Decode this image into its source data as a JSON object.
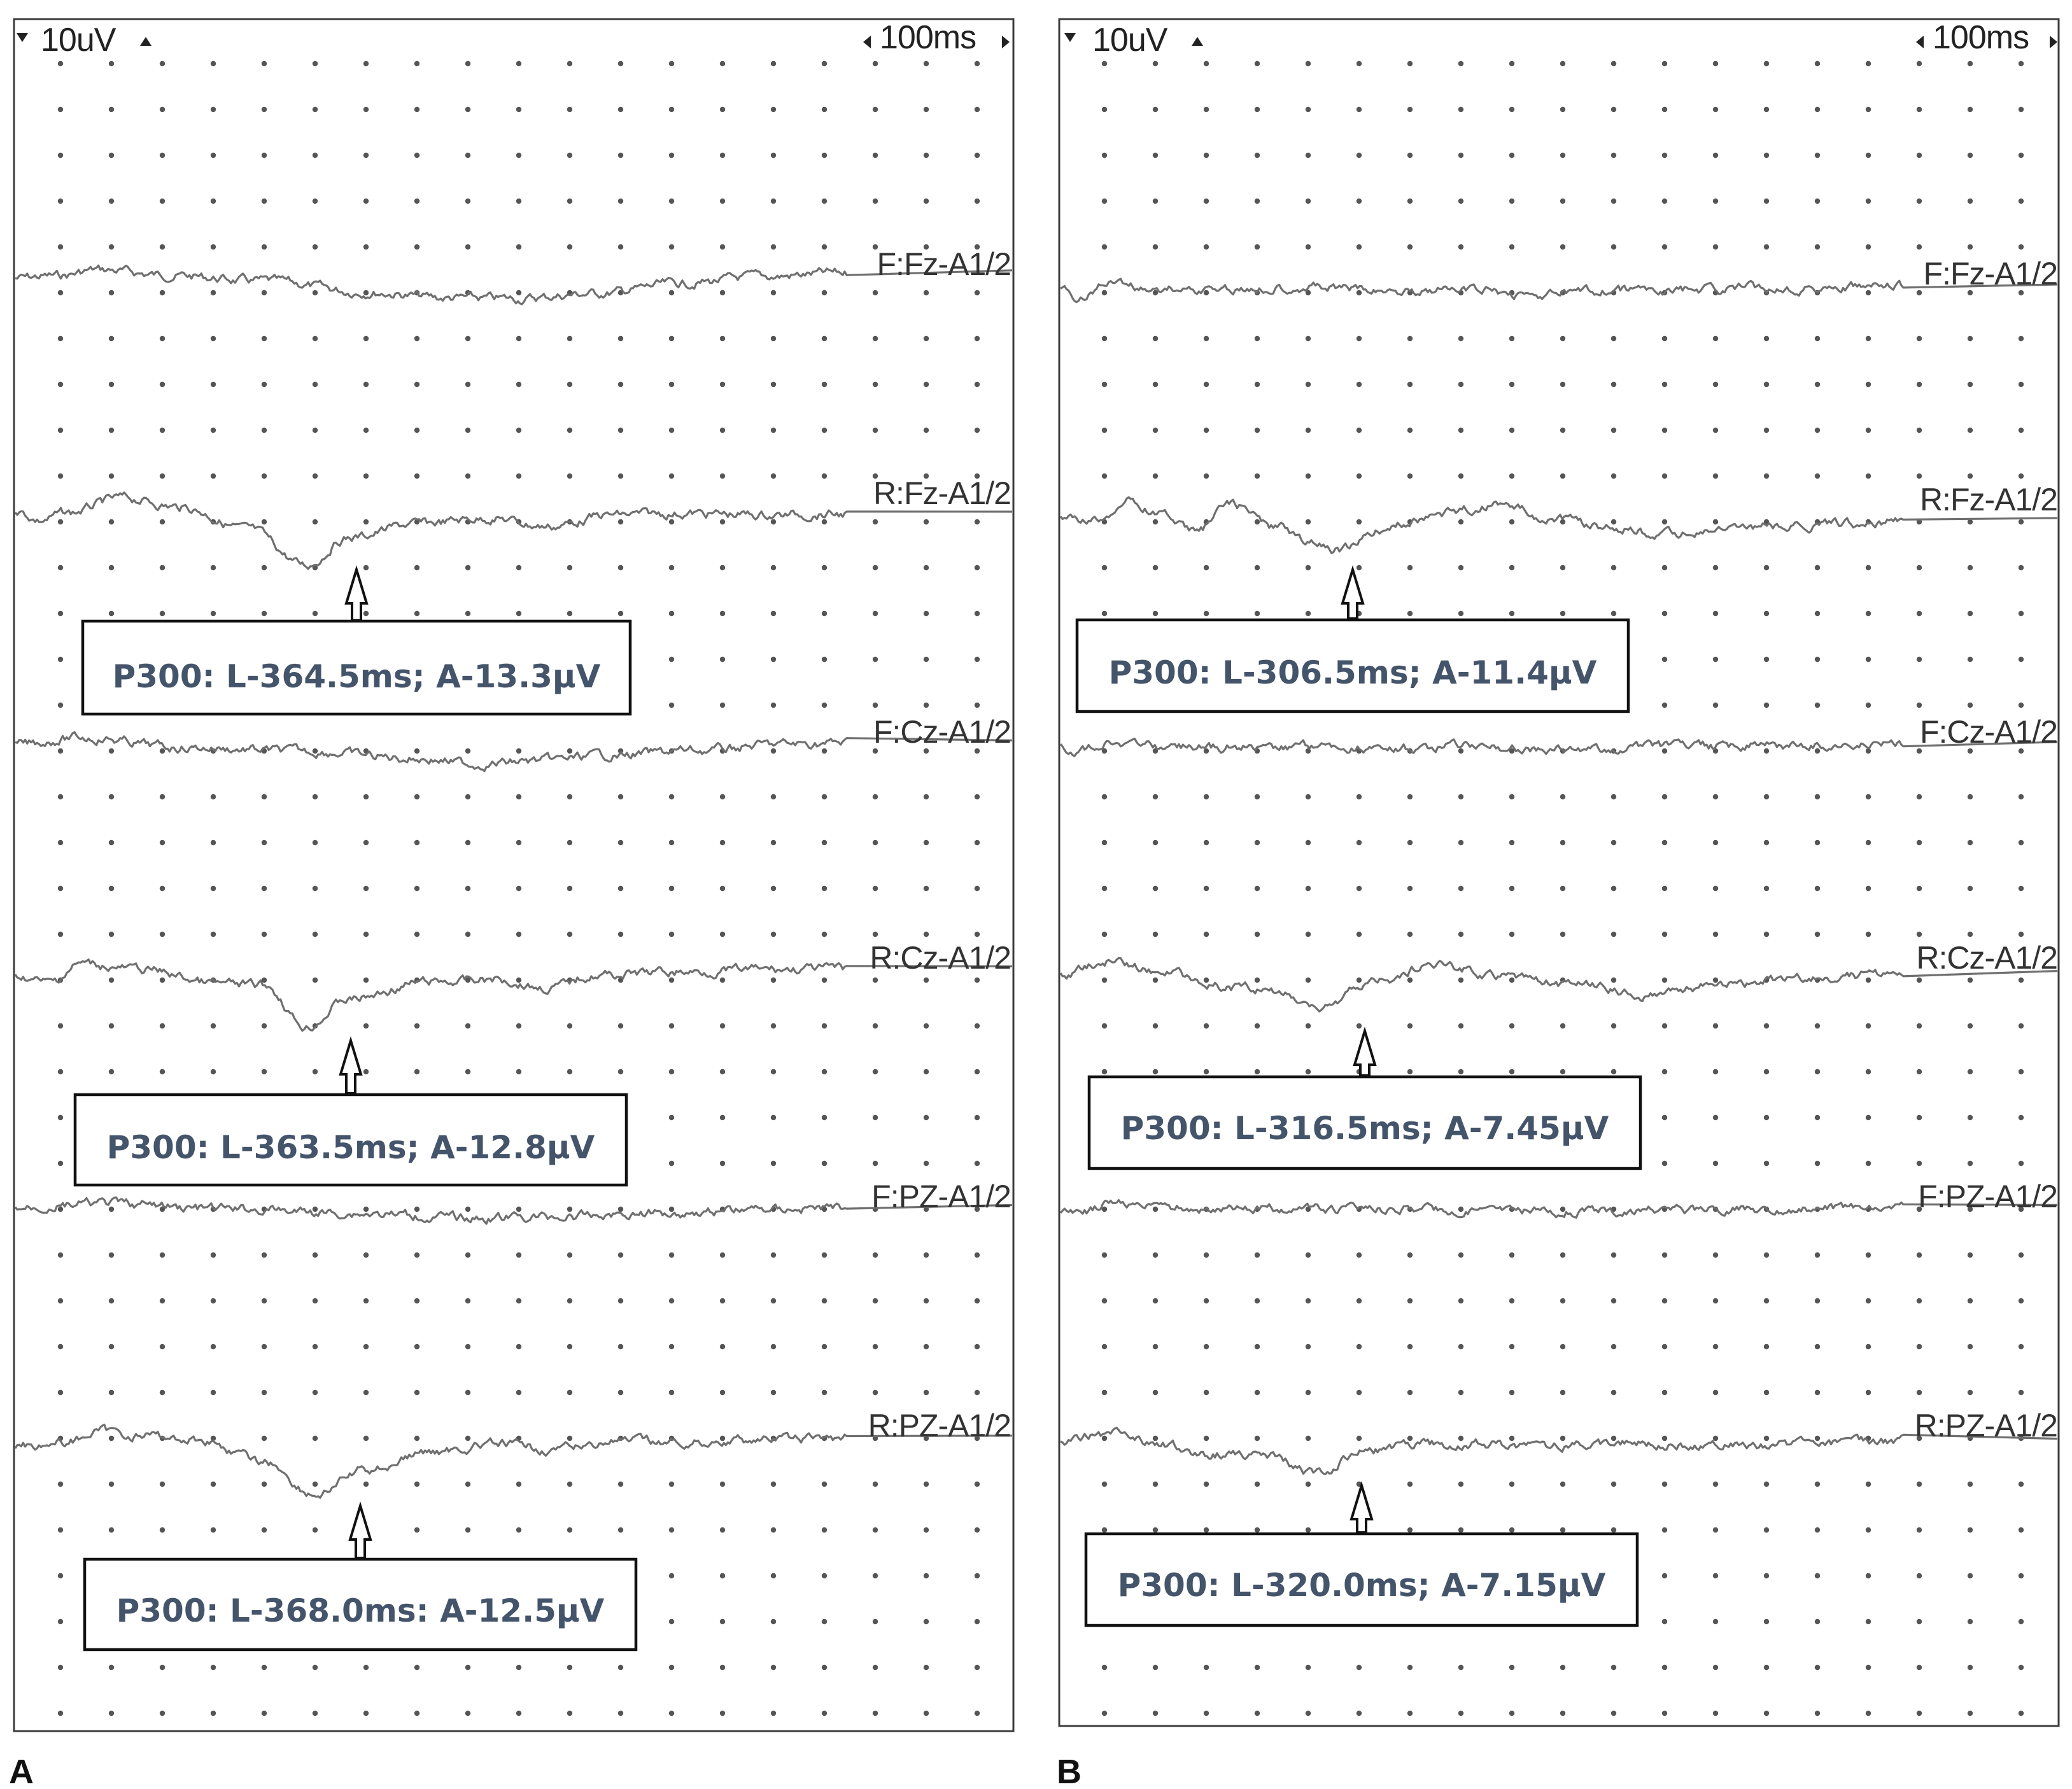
{
  "chart_data": [
    {
      "type": "line",
      "panel_label": "A",
      "scale": {
        "amplitude": "10uV",
        "time": "100ms"
      },
      "series": [
        {
          "name": "F:Fz-A1/2",
          "shape": [
            [
              0,
              0.6
            ],
            [
              0.05,
              0.3
            ],
            [
              0.1,
              -0.5
            ],
            [
              0.18,
              0.2
            ],
            [
              0.3,
              1.0
            ],
            [
              0.42,
              2.4
            ],
            [
              0.52,
              3.2
            ],
            [
              0.6,
              3.3
            ],
            [
              0.7,
              2.6
            ],
            [
              0.8,
              1.3
            ],
            [
              0.9,
              0.4
            ],
            [
              1,
              -0.1
            ]
          ]
        },
        {
          "name": "R:Fz-A1/2",
          "shape": [
            [
              0,
              1.0
            ],
            [
              0.03,
              2.3
            ],
            [
              0.06,
              1.4
            ],
            [
              0.13,
              -0.6
            ],
            [
              0.2,
              0.6
            ],
            [
              0.28,
              3.5
            ],
            [
              0.35,
              8.2
            ],
            [
              0.4,
              4.6
            ],
            [
              0.48,
              2.8
            ],
            [
              0.57,
              2.0
            ],
            [
              0.64,
              3.1
            ],
            [
              0.72,
              1.6
            ],
            [
              0.8,
              1.4
            ],
            [
              0.9,
              1.6
            ],
            [
              1,
              1.5
            ]
          ]
        },
        {
          "name": "F:Cz-A1/2",
          "shape": [
            [
              0,
              0.4
            ],
            [
              0.08,
              -0.5
            ],
            [
              0.2,
              0.8
            ],
            [
              0.35,
              1.3
            ],
            [
              0.48,
              2.2
            ],
            [
              0.56,
              3.0
            ],
            [
              0.62,
              2.6
            ],
            [
              0.72,
              1.8
            ],
            [
              0.82,
              1.2
            ],
            [
              0.92,
              0.4
            ],
            [
              1,
              0.2
            ]
          ]
        },
        {
          "name": "R:Cz-A1/2",
          "shape": [
            [
              0,
              1.0
            ],
            [
              0.04,
              2.0
            ],
            [
              0.08,
              -0.5
            ],
            [
              0.15,
              0.3
            ],
            [
              0.25,
              2.2
            ],
            [
              0.3,
              2.4
            ],
            [
              0.35,
              7.8
            ],
            [
              0.4,
              4.2
            ],
            [
              0.5,
              1.9
            ],
            [
              0.58,
              1.6
            ],
            [
              0.64,
              2.7
            ],
            [
              0.7,
              1.0
            ],
            [
              0.8,
              0.6
            ],
            [
              0.9,
              0.3
            ],
            [
              1,
              0.2
            ]
          ]
        },
        {
          "name": "F:PZ-A1/2",
          "shape": [
            [
              0,
              0.3
            ],
            [
              0.1,
              -0.3
            ],
            [
              0.25,
              0.4
            ],
            [
              0.4,
              0.9
            ],
            [
              0.55,
              1.6
            ],
            [
              0.65,
              1.4
            ],
            [
              0.78,
              0.9
            ],
            [
              0.9,
              0.4
            ],
            [
              1,
              0.2
            ]
          ]
        },
        {
          "name": "R:PZ-A1/2",
          "shape": [
            [
              0,
              1.3
            ],
            [
              0.06,
              1.0
            ],
            [
              0.1,
              -0.5
            ],
            [
              0.15,
              0.0
            ],
            [
              0.22,
              0.6
            ],
            [
              0.3,
              3.5
            ],
            [
              0.36,
              7.8
            ],
            [
              0.42,
              4.6
            ],
            [
              0.5,
              2.2
            ],
            [
              0.58,
              1.2
            ],
            [
              0.65,
              1.9
            ],
            [
              0.72,
              0.8
            ],
            [
              0.8,
              1.0
            ],
            [
              0.9,
              0.6
            ],
            [
              1,
              0.4
            ]
          ]
        }
      ],
      "annotations": [
        {
          "channel": "R:Fz-A1/2",
          "text": "P300: L-364.5ms; A-13.3µV"
        },
        {
          "channel": "R:Cz-A1/2",
          "text": "P300: L-363.5ms; A-12.8µV"
        },
        {
          "channel": "R:PZ-A1/2",
          "text": "P300: L-368.0ms: A-12.5µV"
        }
      ]
    },
    {
      "type": "line",
      "panel_label": "B",
      "scale": {
        "amplitude": "10uV",
        "time": "100ms"
      },
      "series": [
        {
          "name": "F:Fz-A1/2",
          "shape": [
            [
              0,
              1.0
            ],
            [
              0.02,
              2.0
            ],
            [
              0.06,
              -0.2
            ],
            [
              0.1,
              0.7
            ],
            [
              0.2,
              0.8
            ],
            [
              0.28,
              0.4
            ],
            [
              0.38,
              1.0
            ],
            [
              0.48,
              0.9
            ],
            [
              0.57,
              1.6
            ],
            [
              0.64,
              1.0
            ],
            [
              0.72,
              0.9
            ],
            [
              0.85,
              0.6
            ],
            [
              1,
              0.5
            ]
          ]
        },
        {
          "name": "R:Fz-A1/2",
          "shape": [
            [
              0,
              1.3
            ],
            [
              0.04,
              1.5
            ],
            [
              0.08,
              -1.0
            ],
            [
              0.12,
              0.5
            ],
            [
              0.16,
              3.0
            ],
            [
              0.2,
              -0.8
            ],
            [
              0.26,
              2.5
            ],
            [
              0.3,
              4.6
            ],
            [
              0.33,
              5.3
            ],
            [
              0.4,
              2.0
            ],
            [
              0.44,
              0.8
            ],
            [
              0.52,
              -0.6
            ],
            [
              0.58,
              1.0
            ],
            [
              0.66,
              2.5
            ],
            [
              0.72,
              3.4
            ],
            [
              0.78,
              2.7
            ],
            [
              0.85,
              2.4
            ],
            [
              0.92,
              2.0
            ],
            [
              1,
              1.5
            ]
          ]
        },
        {
          "name": "F:Cz-A1/2",
          "shape": [
            [
              0,
              0.6
            ],
            [
              0.02,
              1.4
            ],
            [
              0.06,
              -0.2
            ],
            [
              0.1,
              0.7
            ],
            [
              0.2,
              0.8
            ],
            [
              0.3,
              0.5
            ],
            [
              0.4,
              0.9
            ],
            [
              0.5,
              0.6
            ],
            [
              0.6,
              1.2
            ],
            [
              0.7,
              0.8
            ],
            [
              0.8,
              0.6
            ],
            [
              1,
              0.4
            ]
          ]
        },
        {
          "name": "R:Cz-A1/2",
          "shape": [
            [
              0,
              1.1
            ],
            [
              0.06,
              -0.8
            ],
            [
              0.12,
              0.6
            ],
            [
              0.2,
              2.6
            ],
            [
              0.26,
              3.0
            ],
            [
              0.3,
              5.7
            ],
            [
              0.38,
              1.7
            ],
            [
              0.44,
              -0.4
            ],
            [
              0.52,
              1.0
            ],
            [
              0.6,
              2.2
            ],
            [
              0.7,
              3.6
            ],
            [
              0.78,
              2.4
            ],
            [
              0.88,
              1.5
            ],
            [
              1,
              0.8
            ]
          ]
        },
        {
          "name": "F:PZ-A1/2",
          "shape": [
            [
              0,
              0.8
            ],
            [
              0.02,
              1.0
            ],
            [
              0.06,
              -0.4
            ],
            [
              0.1,
              0.2
            ],
            [
              0.2,
              0.3
            ],
            [
              0.35,
              0.4
            ],
            [
              0.5,
              0.5
            ],
            [
              0.62,
              0.7
            ],
            [
              0.75,
              0.5
            ],
            [
              0.88,
              0.3
            ],
            [
              1,
              0.2
            ]
          ]
        },
        {
          "name": "R:PZ-A1/2",
          "shape": [
            [
              0,
              1.0
            ],
            [
              0.06,
              -0.2
            ],
            [
              0.12,
              1.2
            ],
            [
              0.18,
              2.5
            ],
            [
              0.25,
              3.0
            ],
            [
              0.3,
              5.0
            ],
            [
              0.36,
              2.2
            ],
            [
              0.42,
              1.2
            ],
            [
              0.5,
              1.2
            ],
            [
              0.58,
              1.5
            ],
            [
              0.66,
              1.0
            ],
            [
              0.74,
              1.4
            ],
            [
              0.82,
              1.3
            ],
            [
              0.9,
              1.0
            ],
            [
              1,
              0.8
            ]
          ]
        }
      ],
      "annotations": [
        {
          "channel": "R:Fz-A1/2",
          "text": "P300: L-306.5ms; A-11.4µV"
        },
        {
          "channel": "R:Cz-A1/2",
          "text": "P300: L-316.5ms; A-7.45µV"
        },
        {
          "channel": "R:PZ-A1/2",
          "text": "P300: L-320.0ms; A-7.15µV"
        }
      ]
    }
  ]
}
